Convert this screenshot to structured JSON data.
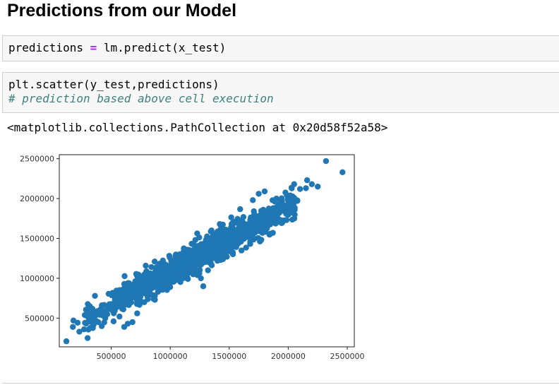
{
  "heading": "Predictions from our Model",
  "cells": {
    "cell1": {
      "lhs": "predictions",
      "op": "=",
      "rhs": "lm.predict(x_test)"
    },
    "cell2": {
      "line1": "plt.scatter(y_test,predictions)",
      "comment": "# prediction based above cell execution"
    }
  },
  "output": {
    "text": "<matplotlib.collections.PathCollection at 0x20d58f52a58>"
  },
  "colors": {
    "marker": "#1f77b4",
    "cell_bg": "#f7f7f7",
    "comment": "#408080",
    "operator": "#aa22ff"
  },
  "chart_data": {
    "type": "scatter",
    "xlim": [
      60000,
      2560000
    ],
    "ylim": [
      140000,
      2550000
    ],
    "xticks": [
      500000,
      1000000,
      1500000,
      2000000,
      2500000
    ],
    "yticks": [
      500000,
      1000000,
      1500000,
      2000000,
      2500000
    ],
    "xtick_labels": [
      "500000",
      "1000000",
      "1500000",
      "2000000",
      "2500000"
    ],
    "ytick_labels": [
      "500000",
      "1000000",
      "1500000",
      "2000000",
      "2500000"
    ],
    "grid": false,
    "cloud_band": {
      "x_range": [
        320000,
        2020000
      ],
      "y_at_x_min": 520000,
      "y_at_x_max": 1920000,
      "spread_y": 85000
    },
    "points": [
      [
        120000,
        210000
      ],
      [
        180000,
        470000
      ],
      [
        175000,
        390000
      ],
      [
        230000,
        330000
      ],
      [
        270000,
        360000
      ],
      [
        300000,
        250000
      ],
      [
        320000,
        470000
      ],
      [
        300000,
        560000
      ],
      [
        350000,
        430000
      ],
      [
        390000,
        450000
      ],
      [
        420000,
        400000
      ],
      [
        450000,
        500000
      ],
      [
        520000,
        460000
      ],
      [
        570000,
        520000
      ],
      [
        610000,
        390000
      ],
      [
        640000,
        430000
      ],
      [
        680000,
        450000
      ],
      [
        720000,
        560000
      ],
      [
        780000,
        700000
      ],
      [
        830000,
        900000
      ],
      [
        870000,
        780000
      ],
      [
        900000,
        1000000
      ],
      [
        960000,
        1130000
      ],
      [
        1000000,
        960000
      ],
      [
        1100000,
        1180000
      ],
      [
        1230000,
        1040000
      ],
      [
        1260000,
        1000000
      ],
      [
        1280000,
        900000
      ],
      [
        1320000,
        1100000
      ],
      [
        1400000,
        1220000
      ],
      [
        1480000,
        1270000
      ],
      [
        1450000,
        1480000
      ],
      [
        1600000,
        1460000
      ],
      [
        1700000,
        1520000
      ],
      [
        1850000,
        1560000
      ],
      [
        1870000,
        1570000
      ],
      [
        1920000,
        1850000
      ],
      [
        1950000,
        1700000
      ],
      [
        1940000,
        1920000
      ],
      [
        1900000,
        2000000
      ],
      [
        2000000,
        1990000
      ],
      [
        2050000,
        2010000
      ],
      [
        2050000,
        2180000
      ],
      [
        2100000,
        2120000
      ],
      [
        2160000,
        2230000
      ],
      [
        2150000,
        2130000
      ],
      [
        2200000,
        2180000
      ],
      [
        2250000,
        2150000
      ],
      [
        2320000,
        2470000
      ],
      [
        2460000,
        2330000
      ],
      [
        1700000,
        1980000
      ],
      [
        1750000,
        2060000
      ],
      [
        1800000,
        2090000
      ],
      [
        1470000,
        1610000
      ],
      [
        1520000,
        1680000
      ],
      [
        1350000,
        1600000
      ],
      [
        1420000,
        1680000
      ]
    ]
  }
}
